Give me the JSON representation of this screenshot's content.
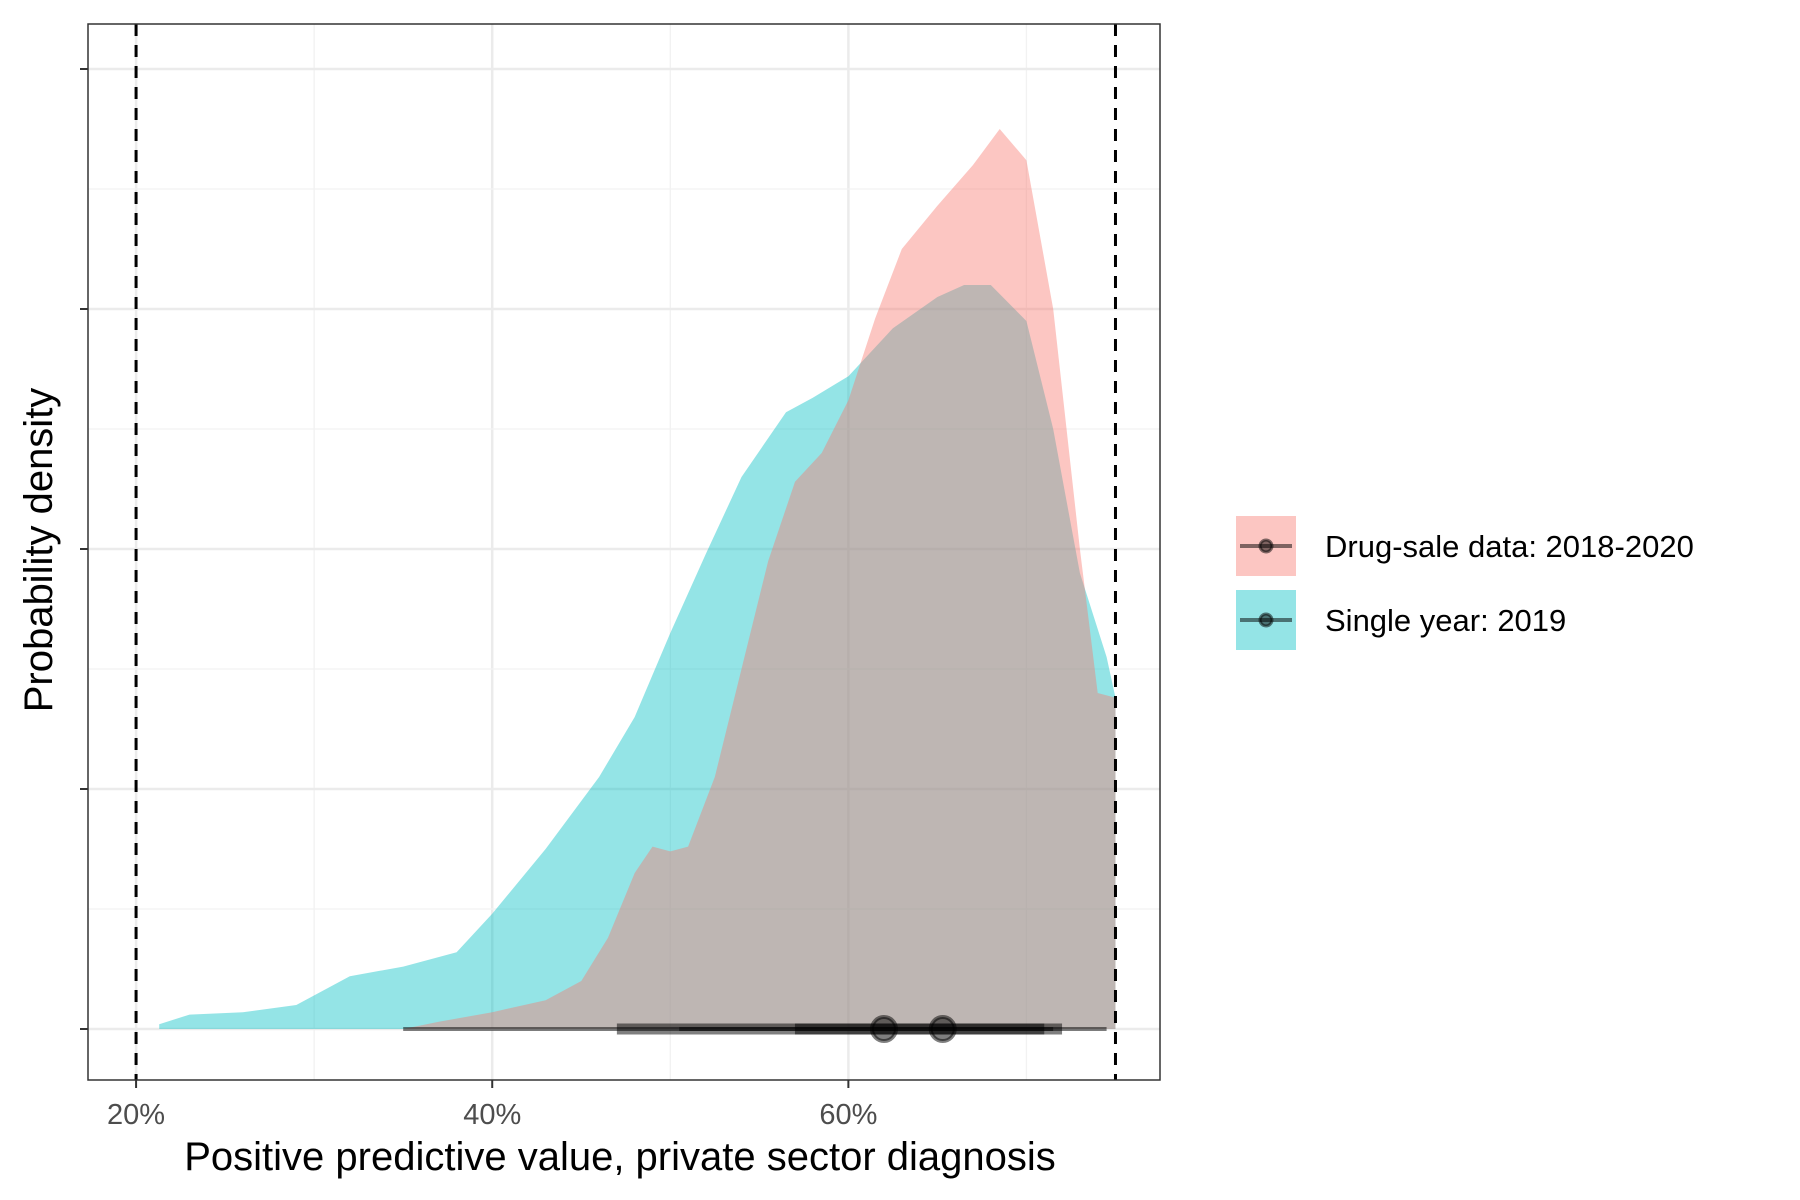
{
  "chart_data": {
    "type": "area",
    "title": "",
    "xlabel": "Positive predictive value, private sector diagnosis",
    "ylabel": "Probability density",
    "xlim": [
      0.173,
      0.775
    ],
    "ylim": [
      0,
      4.05
    ],
    "x_ticks": [
      {
        "value": 0.2,
        "label": "20%"
      },
      {
        "value": 0.4,
        "label": "40%"
      },
      {
        "value": 0.6,
        "label": "60%"
      }
    ],
    "y_ticks": [
      0,
      1,
      2,
      3,
      4
    ],
    "y_tick_labels_shown": false,
    "grid": true,
    "reference_lines": [
      0.2,
      0.75
    ],
    "legend_position": "right",
    "series": [
      {
        "name": "Drug-sale data: 2018-2020",
        "color": "#F8766D",
        "density": [
          [
            0.35,
            0.0
          ],
          [
            0.37,
            0.03
          ],
          [
            0.4,
            0.07
          ],
          [
            0.43,
            0.12
          ],
          [
            0.45,
            0.2
          ],
          [
            0.465,
            0.38
          ],
          [
            0.48,
            0.65
          ],
          [
            0.49,
            0.76
          ],
          [
            0.5,
            0.74
          ],
          [
            0.51,
            0.76
          ],
          [
            0.525,
            1.05
          ],
          [
            0.54,
            1.5
          ],
          [
            0.555,
            1.95
          ],
          [
            0.57,
            2.28
          ],
          [
            0.585,
            2.4
          ],
          [
            0.6,
            2.62
          ],
          [
            0.615,
            2.96
          ],
          [
            0.63,
            3.25
          ],
          [
            0.65,
            3.43
          ],
          [
            0.67,
            3.6
          ],
          [
            0.685,
            3.75
          ],
          [
            0.7,
            3.62
          ],
          [
            0.715,
            3.0
          ],
          [
            0.73,
            2.0
          ],
          [
            0.74,
            1.4
          ],
          [
            0.75,
            1.38
          ]
        ],
        "interval": {
          "outer": [
            0.35,
            0.745
          ],
          "inner": [
            0.47,
            0.72
          ],
          "point": 0.62
        }
      },
      {
        "name": "Single year: 2019",
        "color": "#00BFC4",
        "density": [
          [
            0.213,
            0.02
          ],
          [
            0.23,
            0.06
          ],
          [
            0.26,
            0.07
          ],
          [
            0.29,
            0.1
          ],
          [
            0.32,
            0.22
          ],
          [
            0.35,
            0.26
          ],
          [
            0.38,
            0.32
          ],
          [
            0.4,
            0.48
          ],
          [
            0.43,
            0.75
          ],
          [
            0.46,
            1.05
          ],
          [
            0.48,
            1.3
          ],
          [
            0.5,
            1.65
          ],
          [
            0.52,
            1.98
          ],
          [
            0.54,
            2.3
          ],
          [
            0.565,
            2.57
          ],
          [
            0.58,
            2.63
          ],
          [
            0.6,
            2.72
          ],
          [
            0.625,
            2.92
          ],
          [
            0.65,
            3.05
          ],
          [
            0.665,
            3.1
          ],
          [
            0.68,
            3.1
          ],
          [
            0.7,
            2.95
          ],
          [
            0.715,
            2.5
          ],
          [
            0.73,
            1.9
          ],
          [
            0.745,
            1.55
          ],
          [
            0.75,
            1.38
          ]
        ],
        "interval": {
          "outer": [
            0.505,
            0.715
          ],
          "inner": [
            0.57,
            0.71
          ],
          "point": 0.653
        }
      }
    ]
  }
}
